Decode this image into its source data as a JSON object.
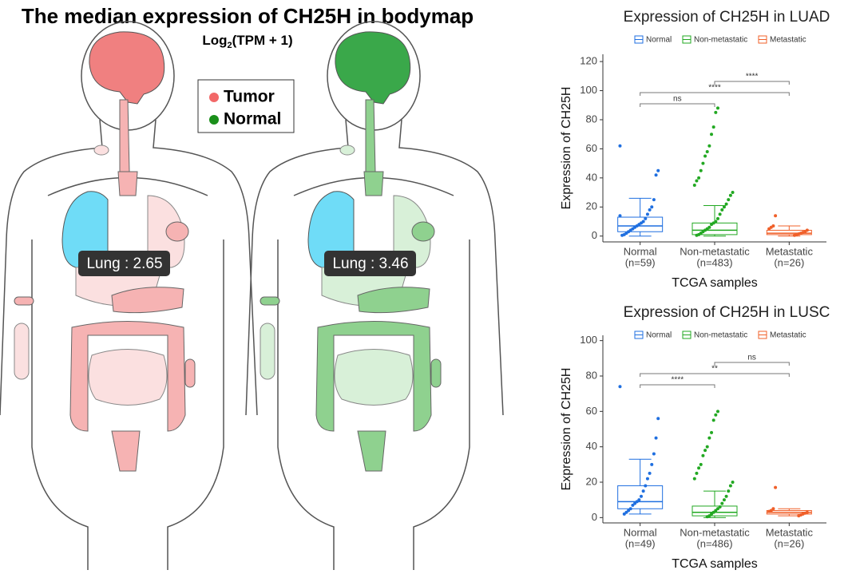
{
  "bodymap": {
    "title": "The median expression of CH25H in bodymap",
    "subtitle": {
      "base": "Log",
      "sub": "2",
      "rest": "(TPM + 1)"
    },
    "legend": [
      {
        "name": "Tumor",
        "color": "#f26868"
      },
      {
        "name": "Normal",
        "color": "#1a8f1a"
      }
    ],
    "labels": [
      "Lung : 2.65",
      "Lung : 3.46"
    ]
  },
  "chart_data": [
    {
      "type": "box",
      "title": "Expression of CH25H in LUAD",
      "xlabel": "TCGA samples",
      "ylabel": "Expression of CH25H",
      "ylim": [
        -4,
        125
      ],
      "yticks": [
        0,
        20,
        40,
        60,
        80,
        100,
        120
      ],
      "categories": [
        "Normal",
        "Non-metastatic",
        "Metastatic"
      ],
      "counts": [
        "(n=59)",
        "(n=483)",
        "(n=26)"
      ],
      "series": [
        {
          "name": "Normal",
          "color": "#1f6fe0",
          "q1": 3,
          "median": 7,
          "q3": 13,
          "whisker_low": 0,
          "whisker_high": 26,
          "points": [
            62,
            45,
            42,
            25,
            20,
            18,
            15,
            12,
            10,
            9,
            8,
            7,
            6,
            5,
            4,
            3,
            2,
            1,
            0.5,
            14
          ]
        },
        {
          "name": "Non-metastatic",
          "color": "#22a822",
          "q1": 1,
          "median": 4,
          "q3": 9,
          "whisker_low": 0,
          "whisker_high": 21,
          "points": [
            88,
            85,
            75,
            70,
            62,
            58,
            55,
            50,
            45,
            40,
            38,
            35,
            30,
            28,
            25,
            22,
            20,
            18,
            15,
            12,
            10,
            9,
            8,
            6,
            5,
            4,
            3,
            2,
            1,
            0.5
          ]
        },
        {
          "name": "Metastatic",
          "color": "#f0602a",
          "q1": 1,
          "median": 2,
          "q3": 4,
          "whisker_low": 0,
          "whisker_high": 7,
          "points": [
            14,
            7,
            6,
            5,
            4,
            3,
            2.5,
            2,
            1.5,
            1,
            0.5
          ]
        }
      ],
      "annotations": [
        {
          "groups": [
            "Normal",
            "Non-metastatic"
          ],
          "label": "ns"
        },
        {
          "groups": [
            "Normal",
            "Metastatic"
          ],
          "label": "****"
        },
        {
          "groups": [
            "Non-metastatic",
            "Metastatic"
          ],
          "label": "****"
        }
      ]
    },
    {
      "type": "box",
      "title": "Expression of CH25H in LUSC",
      "xlabel": "TCGA samples",
      "ylabel": "Expression of CH25H",
      "ylim": [
        -3,
        103
      ],
      "yticks": [
        0,
        20,
        40,
        60,
        80,
        100
      ],
      "categories": [
        "Normal",
        "Non-metastatic",
        "Metastatic"
      ],
      "counts": [
        "(n=49)",
        "(n=486)",
        "(n=26)"
      ],
      "series": [
        {
          "name": "Normal",
          "color": "#1f6fe0",
          "q1": 5,
          "median": 9,
          "q3": 18,
          "whisker_low": 2,
          "whisker_high": 33,
          "points": [
            74,
            56,
            45,
            36,
            30,
            25,
            22,
            18,
            15,
            12,
            10,
            9,
            8,
            7,
            5,
            4,
            3,
            2
          ]
        },
        {
          "name": "Non-metastatic",
          "color": "#22a822",
          "q1": 1,
          "median": 3,
          "q3": 6.5,
          "whisker_low": 0,
          "whisker_high": 15,
          "points": [
            60,
            58,
            55,
            48,
            45,
            40,
            38,
            35,
            30,
            28,
            25,
            22,
            20,
            18,
            15,
            12,
            10,
            8,
            6,
            5,
            4,
            3,
            2,
            1,
            0.5
          ]
        },
        {
          "name": "Metastatic",
          "color": "#f0602a",
          "q1": 2,
          "median": 3,
          "q3": 4,
          "whisker_low": 1,
          "whisker_high": 5,
          "points": [
            17,
            5,
            4,
            3.5,
            3,
            2.5,
            2,
            1.5,
            1
          ]
        }
      ],
      "annotations": [
        {
          "groups": [
            "Normal",
            "Non-metastatic"
          ],
          "label": "****"
        },
        {
          "groups": [
            "Normal",
            "Metastatic"
          ],
          "label": "**"
        },
        {
          "groups": [
            "Non-metastatic",
            "Metastatic"
          ],
          "label": "ns"
        }
      ]
    }
  ]
}
